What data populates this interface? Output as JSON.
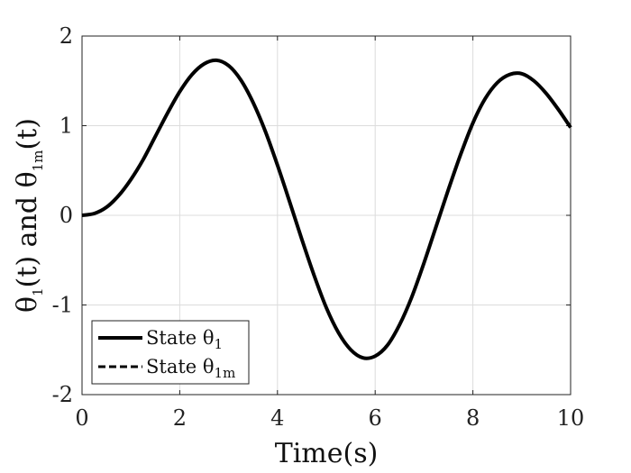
{
  "chart_data": {
    "type": "line",
    "xlabel": "Time(s)",
    "ylabel": {
      "parts": [
        "θ",
        "1",
        "(t) and θ",
        "1m",
        "(t)"
      ]
    },
    "xlim": [
      0,
      10
    ],
    "ylim": [
      -2,
      2
    ],
    "xticks": [
      "0",
      "2",
      "4",
      "6",
      "8",
      "10"
    ],
    "yticks": [
      "-2",
      "-1",
      "0",
      "1",
      "2"
    ],
    "grid": true,
    "legend_position": "bottom-left",
    "series": [
      {
        "name": "State θ1",
        "legend_label": {
          "text": "State θ",
          "sub": "1"
        },
        "style": "solid",
        "color": "#000000",
        "x": [
          0,
          0.25,
          0.5,
          0.75,
          1.0,
          1.25,
          1.5,
          1.75,
          2.0,
          2.25,
          2.5,
          2.75,
          3.0,
          3.25,
          3.5,
          3.75,
          4.0,
          4.25,
          4.5,
          4.75,
          5.0,
          5.25,
          5.5,
          5.75,
          6.0,
          6.25,
          6.5,
          6.75,
          7.0,
          7.25,
          7.5,
          7.75,
          8.0,
          8.25,
          8.5,
          8.75,
          9.0,
          9.25,
          9.5,
          9.75,
          10.0
        ],
        "y": [
          0,
          0.02,
          0.09,
          0.22,
          0.4,
          0.62,
          0.88,
          1.14,
          1.38,
          1.57,
          1.69,
          1.73,
          1.67,
          1.51,
          1.26,
          0.94,
          0.56,
          0.15,
          -0.27,
          -0.67,
          -1.03,
          -1.31,
          -1.5,
          -1.59,
          -1.57,
          -1.45,
          -1.22,
          -0.91,
          -0.53,
          -0.12,
          0.29,
          0.68,
          1.03,
          1.3,
          1.48,
          1.57,
          1.58,
          1.5,
          1.36,
          1.18,
          0.98
        ]
      },
      {
        "name": "State θ1m",
        "legend_label": {
          "text": "State θ",
          "sub": "1m"
        },
        "style": "dashed",
        "color": "#000000",
        "x": [
          0,
          0.25,
          0.5,
          0.75,
          1.0,
          1.25,
          1.5,
          1.75,
          2.0,
          2.25,
          2.5,
          2.75,
          3.0,
          3.25,
          3.5,
          3.75,
          4.0,
          4.25,
          4.5,
          4.75,
          5.0,
          5.25,
          5.5,
          5.75,
          6.0,
          6.25,
          6.5,
          6.75,
          7.0,
          7.25,
          7.5,
          7.75,
          8.0,
          8.25,
          8.5,
          8.75,
          9.0,
          9.25,
          9.5,
          9.75,
          10.0
        ],
        "y": [
          0,
          0.02,
          0.09,
          0.22,
          0.4,
          0.62,
          0.88,
          1.14,
          1.38,
          1.57,
          1.69,
          1.73,
          1.67,
          1.51,
          1.26,
          0.94,
          0.56,
          0.15,
          -0.27,
          -0.67,
          -1.03,
          -1.31,
          -1.5,
          -1.59,
          -1.57,
          -1.45,
          -1.22,
          -0.91,
          -0.53,
          -0.12,
          0.29,
          0.68,
          1.03,
          1.3,
          1.48,
          1.57,
          1.58,
          1.5,
          1.36,
          1.18,
          0.98
        ]
      }
    ]
  }
}
